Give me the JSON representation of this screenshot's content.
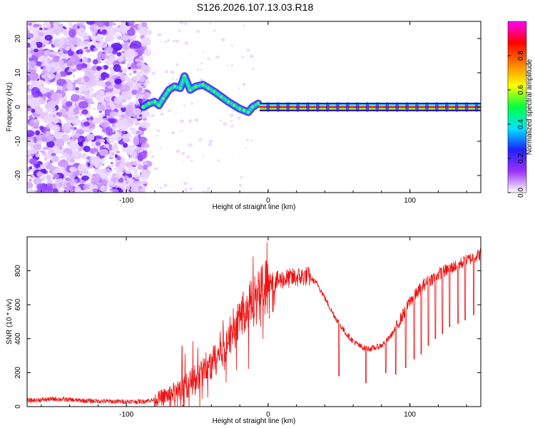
{
  "title": "S126.2026.107.13.03.R18",
  "chart_data": [
    {
      "type": "heatmap",
      "name": "spectrogram",
      "xlabel": "Height of straight line (km)",
      "ylabel": "Frequency (Hz)",
      "xlim": [
        -170,
        150
      ],
      "ylim": [
        -25,
        25
      ],
      "xticks": [
        -100,
        0,
        100
      ],
      "xtick_labels": [
        "-100",
        "0",
        "100"
      ],
      "yticks": [
        -20,
        -10,
        0,
        10,
        20
      ],
      "ytick_labels": [
        "-20",
        "-10",
        "0",
        "10",
        "20"
      ],
      "trace_points": [
        {
          "x": -88,
          "y": 0
        },
        {
          "x": -84,
          "y": 1
        },
        {
          "x": -80,
          "y": 1.5
        },
        {
          "x": -77,
          "y": 0.5
        },
        {
          "x": -74,
          "y": 2.5
        },
        {
          "x": -70,
          "y": 5
        },
        {
          "x": -66,
          "y": 6
        },
        {
          "x": -62,
          "y": 5.5
        },
        {
          "x": -59,
          "y": 9
        },
        {
          "x": -55,
          "y": 5
        },
        {
          "x": -51,
          "y": 6
        },
        {
          "x": -46,
          "y": 6.5
        },
        {
          "x": -42,
          "y": 5.5
        },
        {
          "x": -38,
          "y": 4.5
        },
        {
          "x": -33,
          "y": 3
        },
        {
          "x": -28,
          "y": 1.5
        },
        {
          "x": -24,
          "y": 0.5
        },
        {
          "x": -20,
          "y": -0.5
        },
        {
          "x": -17,
          "y": -1
        },
        {
          "x": -14,
          "y": -1.5
        },
        {
          "x": -11,
          "y": 0
        },
        {
          "x": -7,
          "y": 1
        }
      ],
      "carrier": {
        "x_start": -6,
        "x_end": 150,
        "y": 0
      },
      "colorbar": {
        "label": "Normalized spectral amplitude",
        "range": [
          0,
          1
        ],
        "ticks": [
          0.0,
          0.2,
          0.4,
          0.6,
          0.8
        ],
        "tick_labels": [
          "0.0",
          "0.2",
          "0.4",
          "0.6",
          "0.8"
        ],
        "colors": [
          "#ffffff",
          "#9b30ff",
          "#2020ff",
          "#00e5ff",
          "#00ff40",
          "#ffff00",
          "#ff8000",
          "#ff0000",
          "#ff00ff"
        ]
      }
    },
    {
      "type": "line",
      "name": "snr",
      "xlabel": "Height of straight line (km)",
      "ylabel": "SNR (10 * v/v)",
      "xlim": [
        -170,
        150
      ],
      "ylim": [
        0,
        1000
      ],
      "xticks": [
        -100,
        0,
        100
      ],
      "xtick_labels": [
        "-100",
        "0",
        "100"
      ],
      "yticks": [
        0,
        200,
        400,
        600,
        800
      ],
      "ytick_labels": [
        "0",
        "200",
        "400",
        "600",
        "800"
      ],
      "color": "#ee1111",
      "envelope": [
        {
          "x": -170,
          "y": 35
        },
        {
          "x": -150,
          "y": 45
        },
        {
          "x": -130,
          "y": 35
        },
        {
          "x": -110,
          "y": 30
        },
        {
          "x": -90,
          "y": 30
        },
        {
          "x": -80,
          "y": 40
        },
        {
          "x": -70,
          "y": 70
        },
        {
          "x": -60,
          "y": 110
        },
        {
          "x": -50,
          "y": 170
        },
        {
          "x": -40,
          "y": 250
        },
        {
          "x": -30,
          "y": 380
        },
        {
          "x": -20,
          "y": 520
        },
        {
          "x": -10,
          "y": 640
        },
        {
          "x": 0,
          "y": 720
        },
        {
          "x": 10,
          "y": 750
        },
        {
          "x": 20,
          "y": 760
        },
        {
          "x": 28,
          "y": 770
        },
        {
          "x": 35,
          "y": 720
        },
        {
          "x": 40,
          "y": 640
        },
        {
          "x": 45,
          "y": 560
        },
        {
          "x": 50,
          "y": 490
        },
        {
          "x": 55,
          "y": 430
        },
        {
          "x": 60,
          "y": 385
        },
        {
          "x": 65,
          "y": 355
        },
        {
          "x": 70,
          "y": 340
        },
        {
          "x": 75,
          "y": 345
        },
        {
          "x": 80,
          "y": 360
        },
        {
          "x": 85,
          "y": 400
        },
        {
          "x": 90,
          "y": 460
        },
        {
          "x": 95,
          "y": 540
        },
        {
          "x": 100,
          "y": 620
        },
        {
          "x": 110,
          "y": 720
        },
        {
          "x": 120,
          "y": 780
        },
        {
          "x": 130,
          "y": 820
        },
        {
          "x": 140,
          "y": 860
        },
        {
          "x": 150,
          "y": 900
        }
      ],
      "drops": [
        {
          "x": 50,
          "y": 180
        },
        {
          "x": 69,
          "y": 140
        },
        {
          "x": 83,
          "y": 200
        },
        {
          "x": 90,
          "y": 190
        },
        {
          "x": 97,
          "y": 230
        },
        {
          "x": 103,
          "y": 280
        },
        {
          "x": 108,
          "y": 310
        },
        {
          "x": 113,
          "y": 360
        },
        {
          "x": 118,
          "y": 400
        },
        {
          "x": 123,
          "y": 430
        },
        {
          "x": 128,
          "y": 470
        },
        {
          "x": 134,
          "y": 490
        },
        {
          "x": 139,
          "y": 510
        },
        {
          "x": 145,
          "y": 540
        }
      ]
    }
  ]
}
